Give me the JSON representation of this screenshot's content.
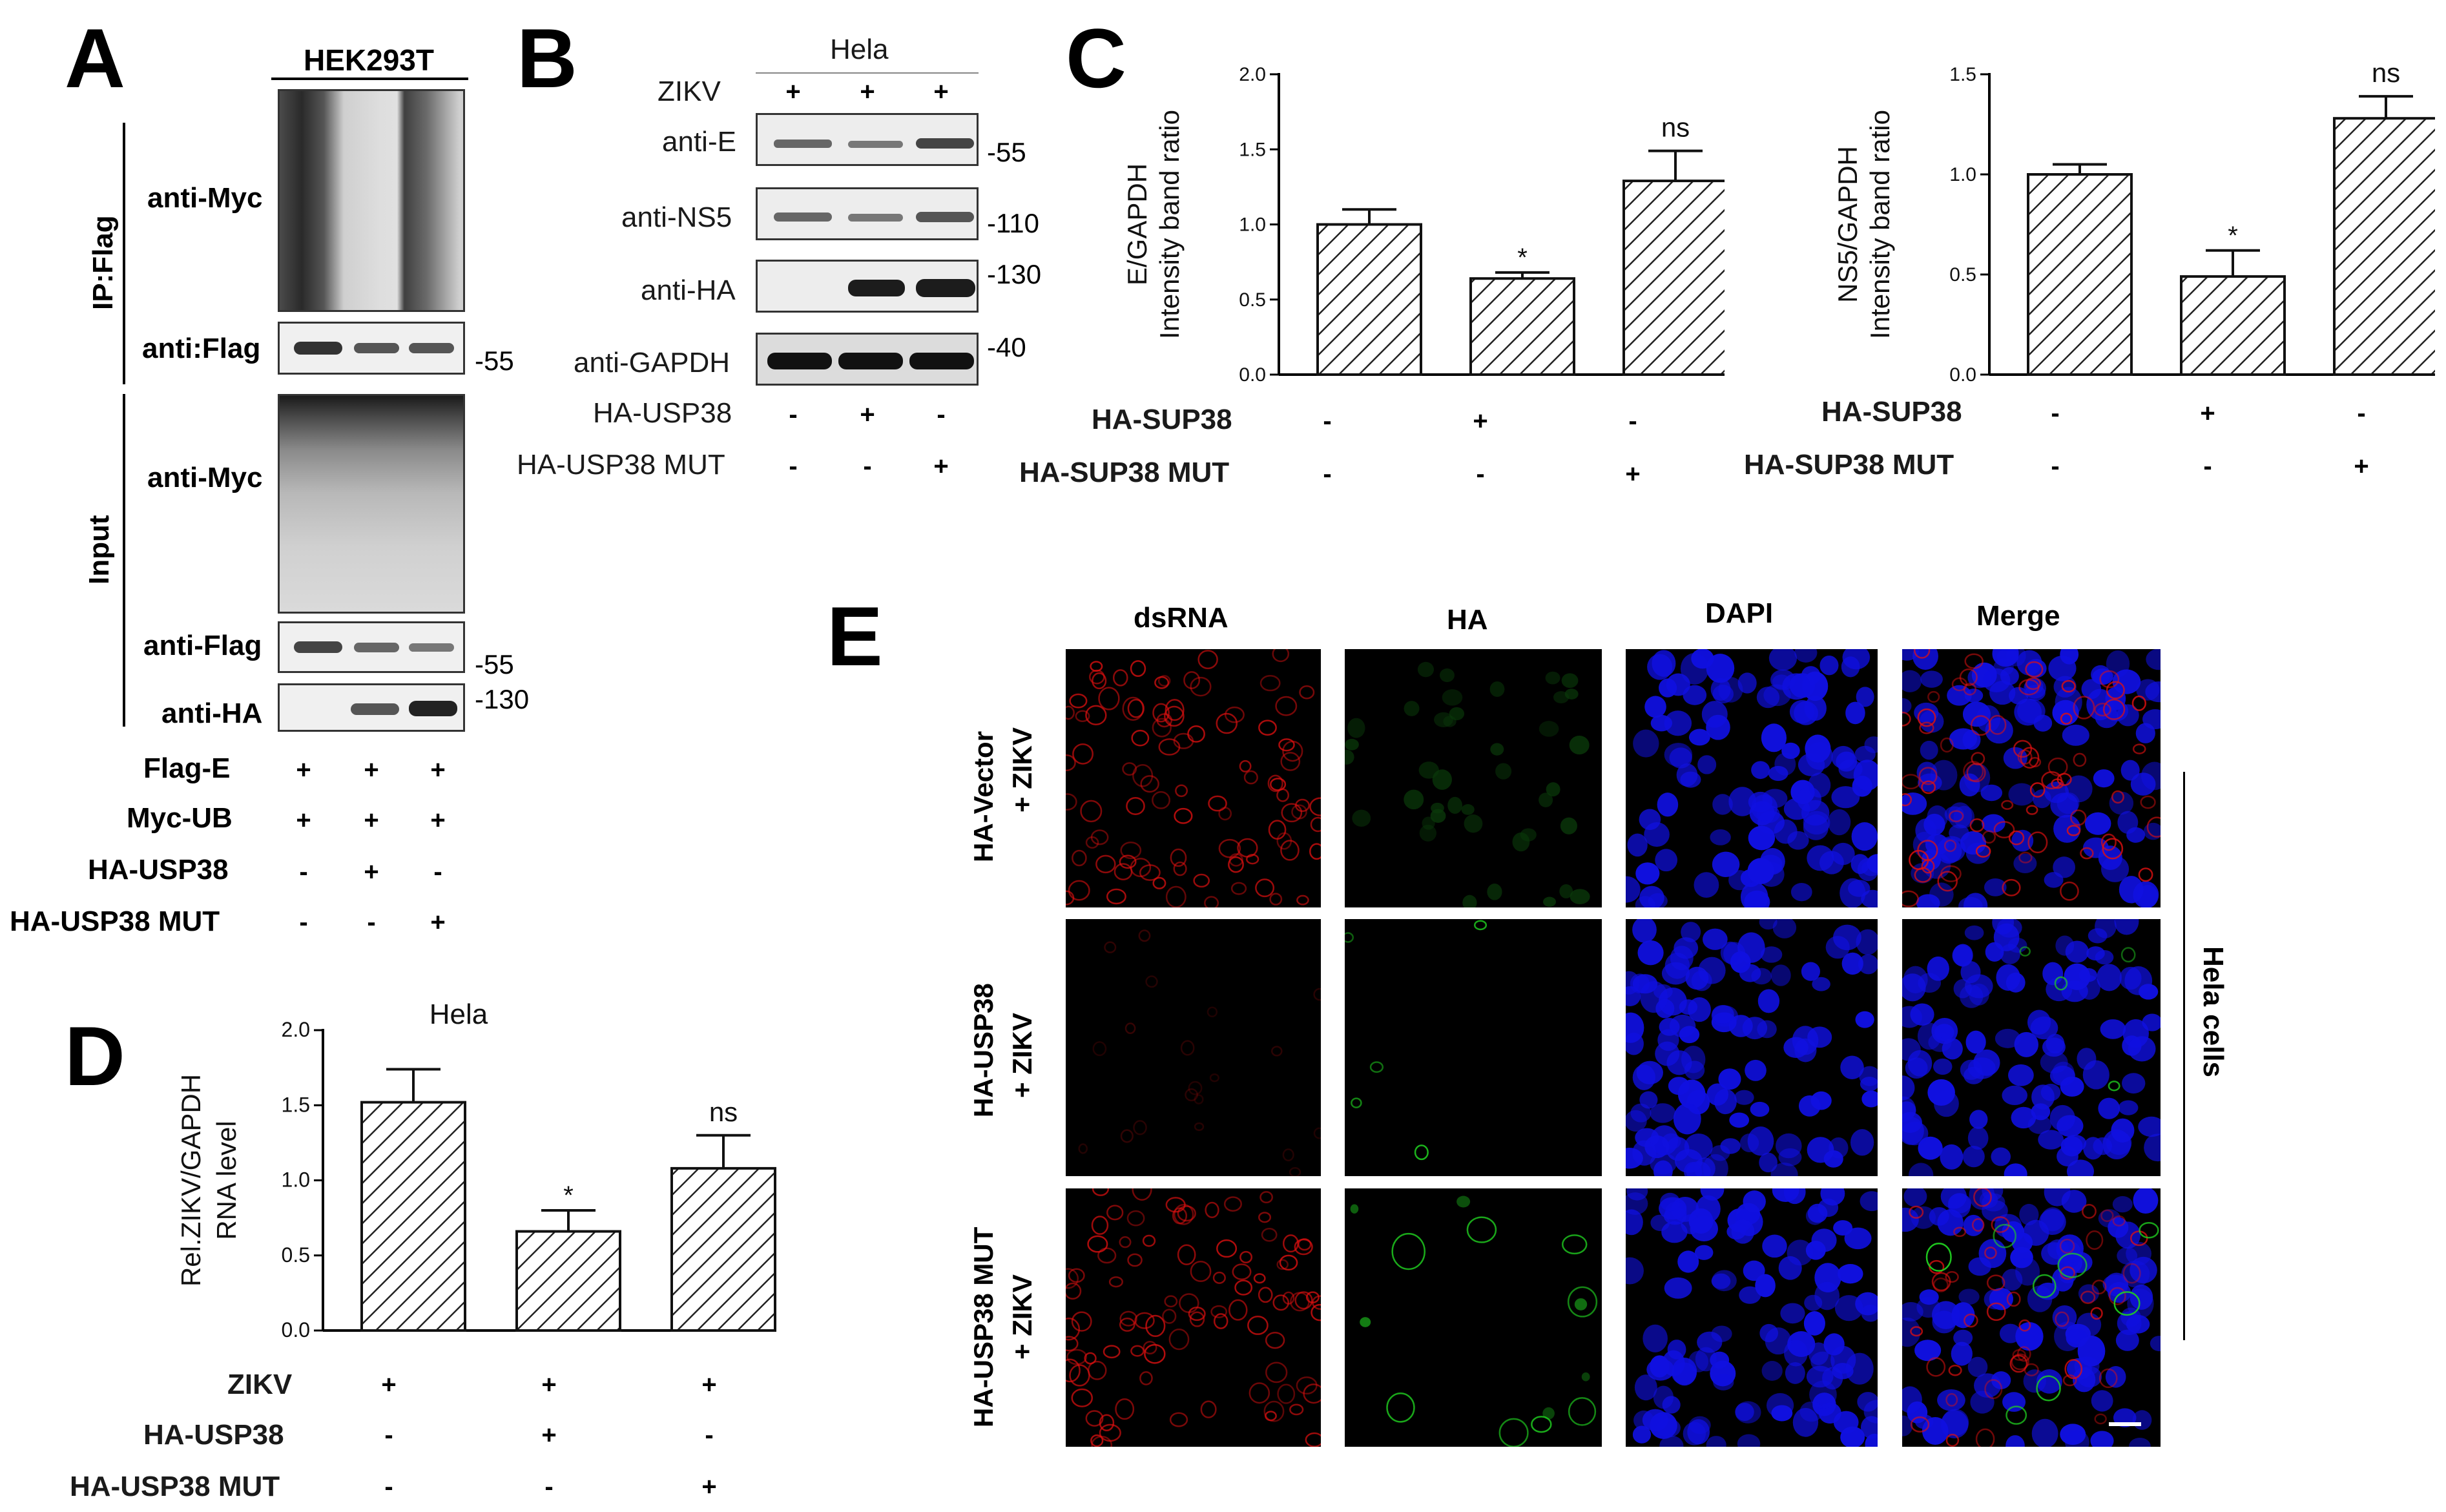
{
  "panel_labels": {
    "a": "A",
    "b": "B",
    "c": "C",
    "d": "D",
    "e": "E"
  },
  "panel_a": {
    "cell_line": "HEK293T",
    "ip_label": "IP:Flag",
    "input_label": "Input",
    "blots": [
      {
        "label": "anti-Myc",
        "mw": ""
      },
      {
        "label": "anti:Flag",
        "mw": "-55"
      },
      {
        "label": "anti-Myc",
        "mw": ""
      },
      {
        "label": "anti-Flag",
        "mw": "-55"
      },
      {
        "label": "anti-HA",
        "mw": "-130"
      }
    ],
    "conditions": [
      {
        "label": "Flag-E",
        "signs": [
          "+",
          "+",
          "+"
        ]
      },
      {
        "label": "Myc-UB",
        "signs": [
          "+",
          "+",
          "+"
        ]
      },
      {
        "label": "HA-USP38",
        "signs": [
          "-",
          "+",
          "-"
        ]
      },
      {
        "label": "HA-USP38 MUT",
        "signs": [
          "-",
          "-",
          "+"
        ]
      }
    ]
  },
  "panel_b": {
    "cell_line": "Hela",
    "zikv_label": "ZIKV",
    "zikv_signs": [
      "+",
      "+",
      "+"
    ],
    "blots": [
      {
        "label": "anti-E",
        "mw": "-55"
      },
      {
        "label": "anti-NS5",
        "mw": "-110"
      },
      {
        "label": "anti-HA",
        "mw": "-130"
      },
      {
        "label": "anti-GAPDH",
        "mw": "-40"
      }
    ],
    "conditions": [
      {
        "label": "HA-USP38",
        "signs": [
          "-",
          "+",
          "-"
        ]
      },
      {
        "label": "HA-USP38 MUT",
        "signs": [
          "-",
          "-",
          "+"
        ]
      }
    ]
  },
  "panel_c": {
    "conditions": [
      {
        "label": "HA-SUP38",
        "signs": [
          "-",
          "+",
          "-"
        ]
      },
      {
        "label": "HA-SUP38 MUT",
        "signs": [
          "-",
          "-",
          "+"
        ]
      }
    ]
  },
  "panel_d": {
    "conditions": [
      {
        "label": "ZIKV",
        "signs": [
          "+",
          "+",
          "+"
        ]
      },
      {
        "label": "HA-USP38",
        "signs": [
          "-",
          "+",
          "-"
        ]
      },
      {
        "label": "HA-USP38 MUT",
        "signs": [
          "-",
          "-",
          "+"
        ]
      }
    ]
  },
  "panel_e": {
    "columns": [
      "dsRNA",
      "HA",
      "DAPI",
      "Merge"
    ],
    "rows": [
      {
        "line1": "HA-Vector",
        "line2": "+ ZIKV"
      },
      {
        "line1": "HA-USP38",
        "line2": "+ ZIKV"
      },
      {
        "line1": "HA-USP38 MUT",
        "line2": "+ ZIKV"
      }
    ],
    "side_label": "Hela cells",
    "colors": {
      "dsRNA": "#e01010",
      "HA": "#20d020",
      "DAPI": "#1010e0"
    }
  },
  "chart_data": [
    {
      "panel": "C-left",
      "type": "bar",
      "categories": [
        "1",
        "2",
        "3"
      ],
      "values": [
        1.0,
        0.64,
        1.29
      ],
      "errors": [
        0.1,
        0.04,
        0.2
      ],
      "significance": [
        "",
        "*",
        "ns"
      ],
      "ylabel": "E/GAPDH\nIntensity band ratio",
      "ylabel_lines": [
        "E/GAPDH",
        "Intensity band ratio"
      ],
      "ylim": [
        0,
        2.0
      ],
      "yticks": [
        "0.0",
        "0.5",
        "1.0",
        "1.5",
        "2.0"
      ],
      "ytick_values": [
        0,
        0.5,
        1.0,
        1.5,
        2.0
      ],
      "bar_fill": "hatched"
    },
    {
      "panel": "C-right",
      "type": "bar",
      "categories": [
        "1",
        "2",
        "3"
      ],
      "values": [
        1.0,
        0.49,
        1.28
      ],
      "errors": [
        0.05,
        0.13,
        0.11
      ],
      "significance": [
        "",
        "*",
        "ns"
      ],
      "ylabel_lines": [
        "NS5/GAPDH",
        "Intensity band ratio"
      ],
      "ylim": [
        0,
        1.5
      ],
      "yticks": [
        "0.0",
        "0.5",
        "1.0",
        "1.5"
      ],
      "ytick_values": [
        0,
        0.5,
        1.0,
        1.5
      ],
      "bar_fill": "hatched"
    },
    {
      "panel": "D",
      "type": "bar",
      "title": "Hela",
      "categories": [
        "1",
        "2",
        "3"
      ],
      "values": [
        1.52,
        0.66,
        1.08
      ],
      "errors": [
        0.22,
        0.14,
        0.22
      ],
      "significance": [
        "",
        "*",
        "ns"
      ],
      "ylabel_lines": [
        "Rel.ZIKV/GAPDH",
        "RNA level"
      ],
      "ylim": [
        0,
        2.0
      ],
      "yticks": [
        "0.0",
        "0.5",
        "1.0",
        "1.5",
        "2.0"
      ],
      "ytick_values": [
        0,
        0.5,
        1.0,
        1.5,
        2.0
      ],
      "bar_fill": "hatched"
    }
  ]
}
